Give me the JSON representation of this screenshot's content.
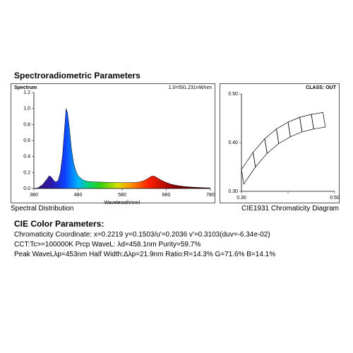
{
  "title_main": "Spectroradiometric Parameters",
  "panel_left": {
    "header": "Spectrum",
    "annotation": "1.0=591.231nW/nm",
    "xlabel": "Wavelength(nm)",
    "caption": "Spectral Distribution",
    "ylim": [
      0.0,
      1.2
    ],
    "yticks": [
      0.0,
      0.2,
      0.4,
      0.6,
      0.8,
      1.0,
      1.2
    ],
    "ytick_labels": [
      "0.0",
      "0.2",
      "0.4",
      "0.6",
      "0.8",
      "1.0",
      "1.2"
    ],
    "xlim": [
      380,
      780
    ],
    "xticks": [
      380,
      480,
      580,
      680,
      780
    ],
    "xtick_labels": [
      "380",
      "480",
      "580",
      "680",
      "780"
    ],
    "spectrum_points": [
      [
        380,
        0.0
      ],
      [
        390,
        0.01
      ],
      [
        400,
        0.05
      ],
      [
        410,
        0.12
      ],
      [
        415,
        0.16
      ],
      [
        420,
        0.14
      ],
      [
        425,
        0.1
      ],
      [
        430,
        0.08
      ],
      [
        435,
        0.1
      ],
      [
        440,
        0.2
      ],
      [
        445,
        0.42
      ],
      [
        450,
        0.78
      ],
      [
        453,
        1.0
      ],
      [
        456,
        0.95
      ],
      [
        460,
        0.78
      ],
      [
        465,
        0.5
      ],
      [
        470,
        0.32
      ],
      [
        475,
        0.22
      ],
      [
        480,
        0.16
      ],
      [
        490,
        0.11
      ],
      [
        500,
        0.09
      ],
      [
        510,
        0.085
      ],
      [
        520,
        0.082
      ],
      [
        530,
        0.08
      ],
      [
        540,
        0.078
      ],
      [
        550,
        0.076
      ],
      [
        560,
        0.075
      ],
      [
        570,
        0.074
      ],
      [
        580,
        0.073
      ],
      [
        590,
        0.073
      ],
      [
        600,
        0.073
      ],
      [
        610,
        0.075
      ],
      [
        620,
        0.082
      ],
      [
        630,
        0.1
      ],
      [
        640,
        0.13
      ],
      [
        645,
        0.15
      ],
      [
        650,
        0.155
      ],
      [
        655,
        0.15
      ],
      [
        660,
        0.13
      ],
      [
        670,
        0.1
      ],
      [
        680,
        0.075
      ],
      [
        690,
        0.055
      ],
      [
        700,
        0.042
      ],
      [
        710,
        0.033
      ],
      [
        720,
        0.026
      ],
      [
        730,
        0.021
      ],
      [
        740,
        0.017
      ],
      [
        750,
        0.014
      ],
      [
        760,
        0.011
      ],
      [
        770,
        0.009
      ],
      [
        780,
        0.007
      ]
    ],
    "rainbow_stops": [
      {
        "wl": 380,
        "color": "#3a0a6b"
      },
      {
        "wl": 420,
        "color": "#2a1aa8"
      },
      {
        "wl": 450,
        "color": "#1040ff"
      },
      {
        "wl": 480,
        "color": "#00b4ff"
      },
      {
        "wl": 500,
        "color": "#00d28a"
      },
      {
        "wl": 530,
        "color": "#30d010"
      },
      {
        "wl": 570,
        "color": "#d8e000"
      },
      {
        "wl": 600,
        "color": "#ff9000"
      },
      {
        "wl": 640,
        "color": "#ff2000"
      },
      {
        "wl": 700,
        "color": "#8a0000"
      },
      {
        "wl": 780,
        "color": "#300000"
      }
    ],
    "axis_color": "#000000",
    "bg": "#ffffff"
  },
  "panel_right": {
    "header": "CLASS: OUT",
    "caption": "CIE1931 Chromaticity Diagram",
    "xlim": [
      0.3,
      0.5
    ],
    "ylim": [
      0.3,
      0.5
    ],
    "xticks": [
      0.3,
      0.4,
      0.5
    ],
    "yticks": [
      0.3,
      0.4,
      0.5
    ],
    "tick_labels_x": [
      "0.30",
      "",
      "0.50"
    ],
    "tick_labels_y": [
      "0.30",
      "0.40",
      "0.50"
    ],
    "bands": [
      {
        "bl": [
          0.305,
          0.315
        ],
        "br": [
          0.33,
          0.35
        ],
        "tr": [
          0.325,
          0.38
        ],
        "tl": [
          0.3,
          0.345
        ]
      },
      {
        "bl": [
          0.33,
          0.35
        ],
        "br": [
          0.355,
          0.378
        ],
        "tr": [
          0.35,
          0.408
        ],
        "tl": [
          0.325,
          0.38
        ]
      },
      {
        "bl": [
          0.355,
          0.378
        ],
        "br": [
          0.38,
          0.398
        ],
        "tr": [
          0.375,
          0.428
        ],
        "tl": [
          0.35,
          0.408
        ]
      },
      {
        "bl": [
          0.38,
          0.398
        ],
        "br": [
          0.405,
          0.412
        ],
        "tr": [
          0.4,
          0.442
        ],
        "tl": [
          0.375,
          0.428
        ]
      },
      {
        "bl": [
          0.405,
          0.412
        ],
        "br": [
          0.43,
          0.422
        ],
        "tr": [
          0.425,
          0.452
        ],
        "tl": [
          0.4,
          0.442
        ]
      },
      {
        "bl": [
          0.43,
          0.422
        ],
        "br": [
          0.455,
          0.428
        ],
        "tr": [
          0.45,
          0.458
        ],
        "tl": [
          0.425,
          0.452
        ]
      },
      {
        "bl": [
          0.455,
          0.428
        ],
        "br": [
          0.48,
          0.432
        ],
        "tr": [
          0.475,
          0.462
        ],
        "tl": [
          0.45,
          0.458
        ]
      }
    ],
    "stroke": "#000000"
  },
  "cie_title": "CIE Color Parameters:",
  "cie_line1": "Chromaticity Coordinate: x=0.2219 y=0.1503/u'=0.2036 v'=0.3103(duv=-6.34e-02)",
  "cie_line2": "CCT:Tc>=100000K Prcp WaveL: λd=458.1nm Purity=59.7%",
  "cie_line3": "Peak WaveLλp=453nm  Half Width:Δλp=21.9nm Ratio:R=14.3% G=71.6% B=14.1%",
  "colors": {
    "text": "#000000",
    "panel_border": "#555555",
    "bg": "#ffffff"
  }
}
